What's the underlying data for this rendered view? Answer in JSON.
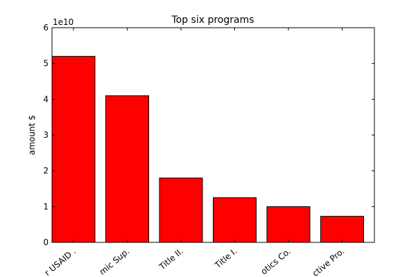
{
  "chart_data": {
    "type": "bar",
    "title": "Top six programs",
    "xlabel": "",
    "ylabel": "amount $",
    "scale_label": "1e10",
    "categories": [
      "r USAID .",
      "mic Sup.",
      "Title II.",
      "Title I.",
      "otics Co.",
      "ctive Pro."
    ],
    "values": [
      5.2,
      4.1,
      1.8,
      1.25,
      1.0,
      0.73
    ],
    "ylim": [
      0,
      6
    ],
    "yticks": [
      "0",
      "1",
      "2",
      "3",
      "4",
      "5",
      "6"
    ],
    "bar_color": "#ff0000",
    "edge_color": "#000000",
    "grid": false
  }
}
